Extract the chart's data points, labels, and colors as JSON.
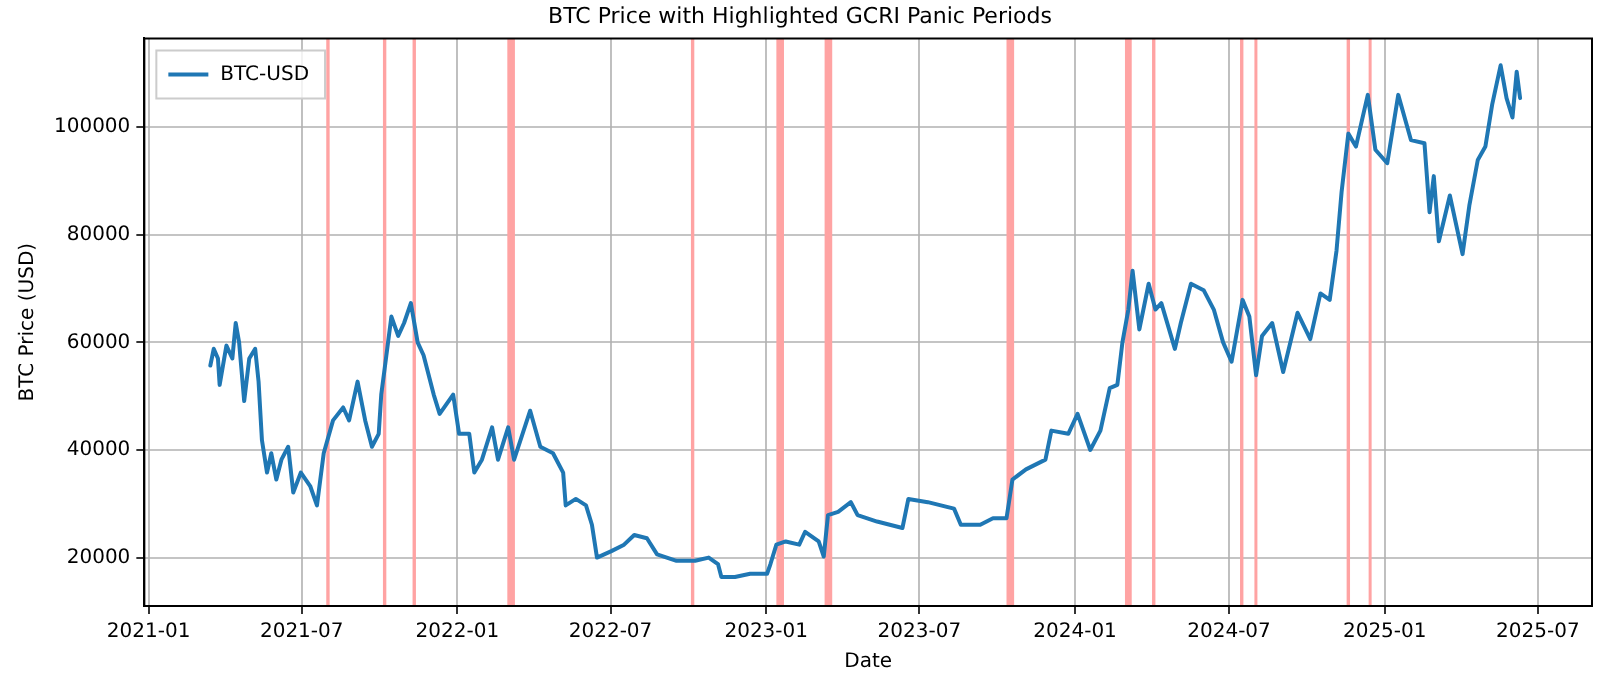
{
  "chart_data": {
    "type": "line",
    "title": "BTC Price with Highlighted GCRI Panic Periods",
    "xlabel": "Date",
    "ylabel": "BTC Price (USD)",
    "x": [
      "2021-03-15",
      "2021-03-19",
      "2021-03-24",
      "2021-03-26",
      "2021-04-03",
      "2021-04-10",
      "2021-04-14",
      "2021-04-18",
      "2021-04-24",
      "2021-04-30",
      "2021-05-07",
      "2021-05-11",
      "2021-05-15",
      "2021-05-21",
      "2021-05-26",
      "2021-06-01",
      "2021-06-07",
      "2021-06-15",
      "2021-06-21",
      "2021-06-30",
      "2021-07-11",
      "2021-07-19",
      "2021-07-27",
      "2021-08-07",
      "2021-08-19",
      "2021-08-26",
      "2021-09-05",
      "2021-09-14",
      "2021-09-22",
      "2021-09-30",
      "2021-10-03",
      "2021-10-07",
      "2021-10-15",
      "2021-10-23",
      "2021-10-30",
      "2021-11-07",
      "2021-11-15",
      "2021-11-22",
      "2021-12-04",
      "2021-12-11",
      "2021-12-27",
      "2022-01-03",
      "2022-01-15",
      "2022-01-21",
      "2022-01-30",
      "2022-02-11",
      "2022-02-18",
      "2022-03-02",
      "2022-03-09",
      "2022-03-19",
      "2022-03-28",
      "2022-04-09",
      "2022-04-24",
      "2022-05-06",
      "2022-05-09",
      "2022-05-21",
      "2022-06-02",
      "2022-06-09",
      "2022-06-15",
      "2022-07-02",
      "2022-07-17",
      "2022-07-29",
      "2022-08-13",
      "2022-08-25",
      "2022-09-17",
      "2022-10-09",
      "2022-10-25",
      "2022-11-05",
      "2022-11-09",
      "2022-11-25",
      "2022-12-13",
      "2023-01-02",
      "2023-01-06",
      "2023-01-13",
      "2023-01-24",
      "2023-02-09",
      "2023-02-16",
      "2023-03-04",
      "2023-03-10",
      "2023-03-15",
      "2023-03-27",
      "2023-04-11",
      "2023-04-19",
      "2023-05-12",
      "2023-06-11",
      "2023-06-18",
      "2023-07-11",
      "2023-08-11",
      "2023-08-19",
      "2023-09-11",
      "2023-09-26",
      "2023-10-12",
      "2023-10-19",
      "2023-11-04",
      "2023-11-27",
      "2023-12-04",
      "2023-12-24",
      "2024-01-04",
      "2024-01-19",
      "2024-01-31",
      "2024-02-11",
      "2024-02-20",
      "2024-02-26",
      "2024-03-04",
      "2024-03-09",
      "2024-03-17",
      "2024-03-28",
      "2024-04-05",
      "2024-04-12",
      "2024-04-28",
      "2024-05-05",
      "2024-05-17",
      "2024-06-01",
      "2024-06-13",
      "2024-06-24",
      "2024-07-04",
      "2024-07-17",
      "2024-07-25",
      "2024-08-02",
      "2024-08-09",
      "2024-08-21",
      "2024-09-03",
      "2024-09-20",
      "2024-10-05",
      "2024-10-17",
      "2024-10-28",
      "2024-11-05",
      "2024-11-11",
      "2024-11-19",
      "2024-11-28",
      "2024-12-12",
      "2024-12-21",
      "2025-01-04",
      "2025-01-17",
      "2025-02-01",
      "2025-02-17",
      "2025-02-23",
      "2025-02-28",
      "2025-03-06",
      "2025-03-19",
      "2025-04-03",
      "2025-04-11",
      "2025-04-21",
      "2025-04-30",
      "2025-05-08",
      "2025-05-18",
      "2025-05-25",
      "2025-06-01",
      "2025-06-06",
      "2025-06-10"
    ],
    "series": [
      {
        "name": "BTC-USD",
        "color": "#1f77b4",
        "values": [
          55700,
          58800,
          57000,
          52100,
          59400,
          57000,
          63600,
          60000,
          49100,
          57000,
          58800,
          52700,
          41800,
          35800,
          39400,
          34500,
          38200,
          40600,
          32100,
          35800,
          33300,
          29700,
          39400,
          45500,
          47900,
          45500,
          52700,
          45500,
          40600,
          43000,
          50300,
          55100,
          64800,
          61200,
          63600,
          67300,
          60000,
          57600,
          50300,
          46700,
          50300,
          43000,
          43000,
          35800,
          38200,
          44200,
          38200,
          44200,
          38200,
          43000,
          47300,
          40600,
          39400,
          35800,
          29700,
          30900,
          29700,
          26100,
          20000,
          21200,
          22400,
          24200,
          23600,
          20600,
          19400,
          19400,
          20000,
          18800,
          16400,
          16400,
          17000,
          17000,
          18800,
          22400,
          23000,
          22400,
          24800,
          23000,
          20200,
          27900,
          28500,
          30300,
          27900,
          26700,
          25500,
          30900,
          30300,
          29100,
          26100,
          26100,
          27300,
          27300,
          34500,
          36400,
          38200,
          43600,
          43000,
          46700,
          40000,
          43600,
          51500,
          52100,
          60000,
          66100,
          73300,
          62400,
          70900,
          66100,
          67300,
          58800,
          63600,
          70900,
          69700,
          66100,
          60000,
          56400,
          67900,
          64800,
          53900,
          61200,
          63600,
          54500,
          65500,
          60600,
          69100,
          67900,
          77000,
          87900,
          98800,
          96400,
          106000,
          95800,
          93300,
          106000,
          97600,
          97000,
          84200,
          90900,
          78800,
          87300,
          76400,
          85400,
          93900,
          96400,
          104200,
          111500,
          105400,
          101800,
          110300,
          105400
        ]
      }
    ],
    "bands": [
      {
        "axis": "x",
        "from": "2021-07-30",
        "to": "2021-08-03",
        "color": "#ffa3a3"
      },
      {
        "axis": "x",
        "from": "2021-10-05",
        "to": "2021-10-09",
        "color": "#ffa3a3"
      },
      {
        "axis": "x",
        "from": "2021-11-09",
        "to": "2021-11-13",
        "color": "#ffa3a3"
      },
      {
        "axis": "x",
        "from": "2022-03-01",
        "to": "2022-03-10",
        "color": "#ffa3a3"
      },
      {
        "axis": "x",
        "from": "2022-10-04",
        "to": "2022-10-08",
        "color": "#ffa3a3"
      },
      {
        "axis": "x",
        "from": "2023-01-13",
        "to": "2023-01-22",
        "color": "#ffa3a3"
      },
      {
        "axis": "x",
        "from": "2023-03-11",
        "to": "2023-03-20",
        "color": "#ffa3a3"
      },
      {
        "axis": "x",
        "from": "2023-10-12",
        "to": "2023-10-21",
        "color": "#ffa3a3"
      },
      {
        "axis": "x",
        "from": "2024-02-29",
        "to": "2024-03-08",
        "color": "#ffa3a3"
      },
      {
        "axis": "x",
        "from": "2024-04-01",
        "to": "2024-04-05",
        "color": "#ffa3a3"
      },
      {
        "axis": "x",
        "from": "2024-07-14",
        "to": "2024-07-18",
        "color": "#ffa3a3"
      },
      {
        "axis": "x",
        "from": "2024-07-31",
        "to": "2024-08-02",
        "color": "#ffa3a3"
      },
      {
        "axis": "x",
        "from": "2024-11-17",
        "to": "2024-11-21",
        "color": "#ffa3a3"
      },
      {
        "axis": "x",
        "from": "2024-12-13",
        "to": "2024-12-15",
        "color": "#ffa3a3"
      }
    ],
    "xlim": [
      "2020-12-27",
      "2025-09-03"
    ],
    "xticks": [
      "2021-01",
      "2021-07",
      "2022-01",
      "2022-07",
      "2023-01",
      "2023-07",
      "2024-01",
      "2024-07",
      "2025-01",
      "2025-07"
    ],
    "ylim": [
      11000,
      116500
    ],
    "yticks": [
      20000,
      40000,
      60000,
      80000,
      100000
    ],
    "grid": true,
    "legend": "top left",
    "marker": "none",
    "line_style": "solid"
  }
}
